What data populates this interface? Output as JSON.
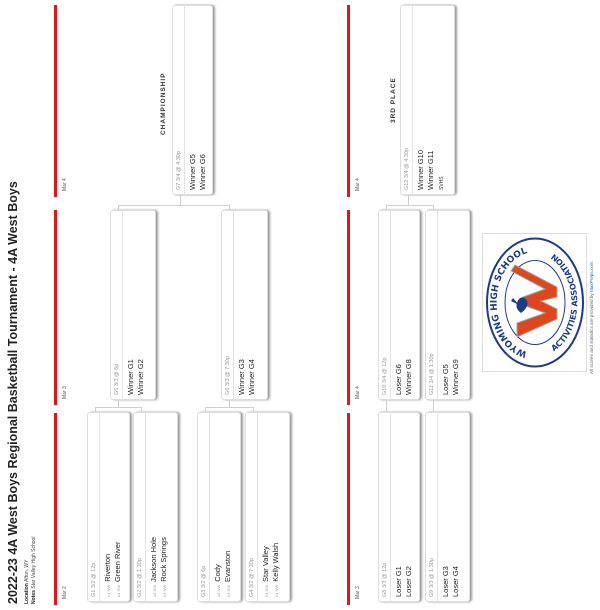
{
  "header": {
    "title": "2022-23 4A West Boys Regional Basketball Tournament - 4A West Boys",
    "location_label": "Location",
    "location": "Afton, WY",
    "notes_label": "Notes",
    "notes": "Star Valley High School"
  },
  "main_bracket": {
    "dates": [
      "Mar 2",
      "Mar 3",
      "Mar 4"
    ],
    "final_label": "CHAMPIONSHIP",
    "games": [
      {
        "id": "G1",
        "header": "G1 3/2 @ 12p",
        "teams": [
          {
            "seed": "#1 NW",
            "name": "Riverton"
          },
          {
            "seed": "#4 SW",
            "name": "Green River"
          }
        ]
      },
      {
        "id": "G2",
        "header": "G2 3/2 @ 1:30p",
        "teams": [
          {
            "seed": "#2 SW",
            "name": "Jackson Hole"
          },
          {
            "seed": "#3 NW",
            "name": "Rock Springs"
          }
        ]
      },
      {
        "id": "G3",
        "header": "G3 3/2 @ 6p",
        "teams": [
          {
            "seed": "#2 NW",
            "name": "Cody"
          },
          {
            "seed": "#3 SW",
            "name": "Evanston"
          }
        ]
      },
      {
        "id": "G4",
        "header": "G4 3/2 @ 7:30p",
        "teams": [
          {
            "seed": "#1 SW",
            "name": "Star Valley"
          },
          {
            "seed": "#4 NW",
            "name": "Kelly Walsh"
          }
        ]
      },
      {
        "id": "G5",
        "header": "G5 3/3 @ 6p",
        "teams": [
          {
            "seed": "",
            "name": "Winner G1"
          },
          {
            "seed": "",
            "name": "Winner G2"
          }
        ]
      },
      {
        "id": "G6",
        "header": "G6 3/3 @ 7:30p",
        "teams": [
          {
            "seed": "",
            "name": "Winner G3"
          },
          {
            "seed": "",
            "name": "Winner G4"
          }
        ]
      },
      {
        "id": "G7",
        "header": "G7 3/4 @ 4:30p",
        "teams": [
          {
            "seed": "",
            "name": "Winner G5"
          },
          {
            "seed": "",
            "name": "Winner G6"
          }
        ]
      }
    ]
  },
  "consolation_bracket": {
    "dates": [
      "Mar 3",
      "Mar 4",
      "Mar 4"
    ],
    "final_label": "3RD PLACE",
    "games": [
      {
        "id": "G8",
        "header": "G8 3/3 @ 12p",
        "teams": [
          {
            "seed": "",
            "name": "Loser G1"
          },
          {
            "seed": "",
            "name": "Loser G2"
          }
        ]
      },
      {
        "id": "G9",
        "header": "G9 3/3 @ 1:30p",
        "teams": [
          {
            "seed": "",
            "name": "Loser G3"
          },
          {
            "seed": "",
            "name": "Loser G4"
          }
        ]
      },
      {
        "id": "G10",
        "header": "G10 3/4 @ 12p",
        "teams": [
          {
            "seed": "",
            "name": "Loser G6"
          },
          {
            "seed": "",
            "name": "Winner G8"
          }
        ]
      },
      {
        "id": "G11",
        "header": "G11 3/4 @ 1:30p",
        "teams": [
          {
            "seed": "",
            "name": "Loser G5"
          },
          {
            "seed": "",
            "name": "Winner G9"
          }
        ]
      },
      {
        "id": "G12",
        "header": "G12 3/4 @ 4:30p",
        "teams": [
          {
            "seed": "",
            "name": "Winner G10"
          },
          {
            "seed": "",
            "name": "Winner G11"
          }
        ],
        "host": "SVHS"
      }
    ]
  },
  "logo": {
    "text_top": "WYOMING HIGH SCHOOL",
    "text_bottom": "ACTIVITIES ASSOCIATION",
    "colors": {
      "red": "#e0461e",
      "blue": "#1f3a8a",
      "ring": "#1f3a8a"
    }
  },
  "footer": {
    "credits": "All scores and statistics are provided by ",
    "credits_link": "MaxPreps.com"
  },
  "colors": {
    "date_bar": "#e0161b",
    "link": "#2a6ebb"
  }
}
